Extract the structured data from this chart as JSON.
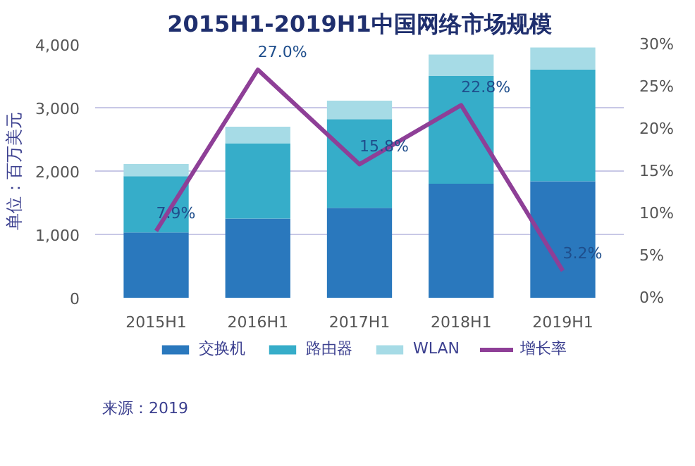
{
  "chart_data": {
    "type": "bar",
    "title": "2015H1-2019H1中国网络市场规模",
    "ylabel": "单位：百万美元",
    "categories": [
      "2015H1",
      "2016H1",
      "2017H1",
      "2018H1",
      "2019H1"
    ],
    "stacked": true,
    "series": [
      {
        "name": "交换机",
        "color": "#2a78bd",
        "values": [
          1030,
          1250,
          1420,
          1800,
          1840
        ]
      },
      {
        "name": "路由器",
        "color": "#36adc9",
        "values": [
          890,
          1190,
          1400,
          1700,
          1760
        ]
      },
      {
        "name": "WLAN",
        "color": "#a6dbe6",
        "values": [
          190,
          260,
          290,
          340,
          350
        ]
      },
      {
        "name": "增长率",
        "type": "line",
        "axis": "y2",
        "color": "#8e3f97",
        "values": [
          7.9,
          27.0,
          15.8,
          22.8,
          3.2
        ],
        "value_labels": [
          "7.9%",
          "27.0%",
          "15.8%",
          "22.8%",
          "3.2%"
        ]
      }
    ],
    "ylim": [
      0,
      4000
    ],
    "yticks": [
      {
        "value": 0,
        "label": "0"
      },
      {
        "value": 1000,
        "label": "1,000"
      },
      {
        "value": 2000,
        "label": "2,000"
      },
      {
        "value": 3000,
        "label": "3,000"
      },
      {
        "value": 4000,
        "label": "4,000"
      }
    ],
    "y2lim": [
      0,
      30
    ],
    "y2ticks": [
      {
        "value": 0,
        "label": "0%"
      },
      {
        "value": 5,
        "label": "5%"
      },
      {
        "value": 10,
        "label": "10%"
      },
      {
        "value": 15,
        "label": "15%"
      },
      {
        "value": 20,
        "label": "20%"
      },
      {
        "value": 25,
        "label": "25%"
      },
      {
        "value": 30,
        "label": "30%"
      }
    ],
    "grid": "y",
    "legend": "bottom",
    "annotations": [
      "来源：2019"
    ]
  }
}
